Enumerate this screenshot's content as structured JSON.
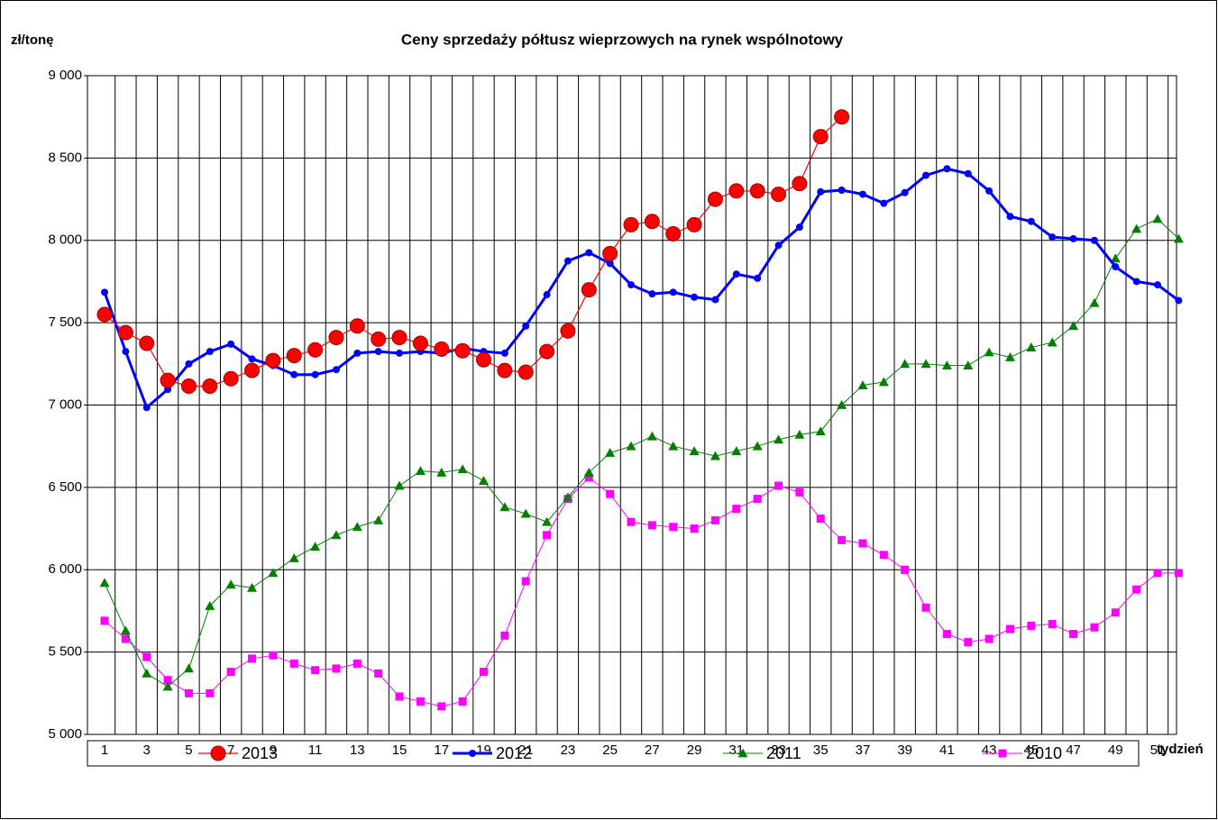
{
  "chart_data": {
    "type": "line",
    "title": "Ceny sprzedaży półtusz wieprzowych na rynek wspólnotowy",
    "y_label": "zł/tonę",
    "x_label": "tydzień",
    "categories": [
      "1",
      null,
      "3",
      null,
      "5",
      null,
      "7",
      null,
      "9",
      null,
      "11",
      null,
      "13",
      null,
      "15",
      null,
      "17",
      null,
      "19",
      null,
      "21",
      null,
      "23",
      null,
      "25",
      null,
      "27",
      null,
      "29",
      null,
      "31",
      null,
      "33",
      null,
      "35",
      null,
      "37",
      null,
      "39",
      null,
      "41",
      null,
      "43",
      null,
      "45",
      null,
      "47",
      null,
      "49",
      null,
      "51",
      null
    ],
    "ylim": [
      5000,
      9000
    ],
    "yticks": [
      {
        "value": 5000,
        "label": "5 000"
      },
      {
        "value": 5500,
        "label": "5 500"
      },
      {
        "value": 6000,
        "label": "6 000"
      },
      {
        "value": 6500,
        "label": "6 500"
      },
      {
        "value": 7000,
        "label": "7 000"
      },
      {
        "value": 7500,
        "label": "7 500"
      },
      {
        "value": 8000,
        "label": "8 000"
      },
      {
        "value": 8500,
        "label": "8 500"
      },
      {
        "value": 9000,
        "label": "9 000"
      }
    ],
    "grid": true,
    "series": [
      {
        "name": "2013",
        "color": "#ff0000",
        "marker": "circle",
        "values": [
          7550,
          7440,
          7375,
          7150,
          7115,
          7115,
          7160,
          7210,
          7270,
          7300,
          7335,
          7410,
          7480,
          7400,
          7410,
          7375,
          7340,
          7330,
          7275,
          7210,
          7200,
          7325,
          7450,
          7700,
          7920,
          8095,
          8115,
          8040,
          8095,
          8250,
          8300,
          8300,
          8280,
          8345,
          8630,
          8750,
          null,
          null,
          null,
          null,
          null,
          null,
          null,
          null,
          null,
          null,
          null,
          null,
          null,
          null,
          null,
          null
        ]
      },
      {
        "name": "2012",
        "color": "#0000ff",
        "marker": "dot",
        "values": [
          7685,
          7325,
          6985,
          7095,
          7250,
          7325,
          7370,
          7280,
          7240,
          7185,
          7185,
          7215,
          7315,
          7325,
          7315,
          7325,
          7315,
          7345,
          7325,
          7315,
          7480,
          7670,
          7875,
          7925,
          7860,
          7730,
          7675,
          7685,
          7655,
          7640,
          7795,
          7770,
          7970,
          8080,
          8295,
          8305,
          8280,
          8225,
          8290,
          8395,
          8435,
          8405,
          8300,
          8145,
          8115,
          8020,
          8010,
          8000,
          7840,
          7750,
          7730,
          7635
        ]
      },
      {
        "name": "2011",
        "color": "#008000",
        "marker": "triangle",
        "values": [
          5920,
          5630,
          5370,
          5290,
          5400,
          5780,
          5910,
          5890,
          5980,
          6070,
          6140,
          6210,
          6260,
          6300,
          6510,
          6600,
          6590,
          6610,
          6540,
          6380,
          6340,
          6290,
          6440,
          6590,
          6710,
          6750,
          6810,
          6750,
          6720,
          6690,
          6720,
          6750,
          6790,
          6820,
          6840,
          7000,
          7120,
          7140,
          7250,
          7250,
          7240,
          7240,
          7320,
          7290,
          7350,
          7380,
          7480,
          7620,
          7890,
          8070,
          8130,
          8010
        ]
      },
      {
        "name": "2010",
        "color": "#ff00ff",
        "marker": "square",
        "values": [
          5690,
          5580,
          5470,
          5330,
          5250,
          5250,
          5380,
          5460,
          5480,
          5430,
          5390,
          5400,
          5430,
          5370,
          5230,
          5200,
          5170,
          5200,
          5380,
          5600,
          5930,
          6210,
          6430,
          6560,
          6460,
          6290,
          6270,
          6260,
          6250,
          6300,
          6370,
          6430,
          6510,
          6470,
          6310,
          6180,
          6160,
          6090,
          6000,
          5770,
          5610,
          5560,
          5580,
          5640,
          5660,
          5670,
          5610,
          5650,
          5740,
          5880,
          5980,
          5980
        ]
      }
    ]
  }
}
